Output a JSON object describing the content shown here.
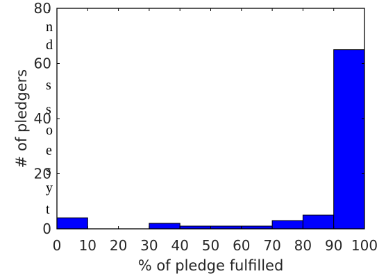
{
  "side_text_fragments": [
    ",",
    "n",
    "d",
    "s",
    "s",
    "o",
    "e",
    "s",
    "y",
    "t"
  ],
  "chart_data": {
    "type": "bar",
    "xlabel": "% of pledge fulfilled",
    "ylabel": "# of pledgers",
    "xlim": [
      0,
      100
    ],
    "ylim": [
      0,
      80
    ],
    "xticks": [
      "0",
      "10",
      "20",
      "30",
      "40",
      "50",
      "60",
      "70",
      "80",
      "90",
      "100"
    ],
    "yticks": [
      "0",
      "20",
      "40",
      "60",
      "80"
    ],
    "bins": [
      [
        0,
        10
      ],
      [
        10,
        20
      ],
      [
        20,
        30
      ],
      [
        30,
        40
      ],
      [
        40,
        50
      ],
      [
        50,
        60
      ],
      [
        60,
        70
      ],
      [
        70,
        80
      ],
      [
        80,
        90
      ],
      [
        90,
        100
      ]
    ],
    "values": [
      4,
      0,
      0,
      2,
      1,
      1,
      1,
      3,
      5,
      65
    ],
    "grid": false,
    "bar_color": "#0000ff",
    "edge_color": "#000000"
  }
}
